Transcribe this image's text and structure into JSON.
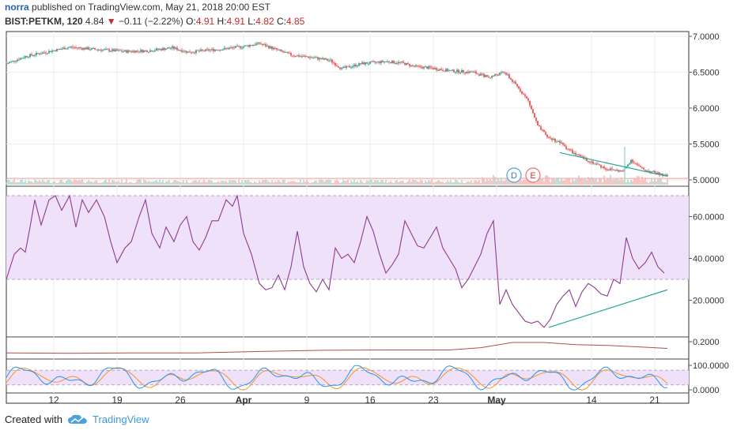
{
  "header": {
    "author": "norra",
    "published": "published on TradingView.com, May 21, 2018 20:00 EST",
    "symbol": "BIST:PETKM, 120",
    "last": "4.84",
    "change": "−0.11 (−2.22%)",
    "o_label": "O:",
    "o_val": "4.91",
    "h_label": "H:",
    "h_val": "4.91",
    "l_label": "L:",
    "l_val": "4.82",
    "c_label": "C:",
    "c_val": "4.85"
  },
  "footer": {
    "created_with": "Created with",
    "brand": "TradingView"
  },
  "markers": {
    "d": "D",
    "e": "E"
  },
  "colors": {
    "up": "#26a69a",
    "down": "#ef5350",
    "rsi": "#8e3b8e",
    "band": "#f0e1fb",
    "trend": "#26a69a",
    "k": "#2196f3",
    "d": "#f7931e",
    "adx": "#b24c4c"
  },
  "chart_data": [
    {
      "type": "candlestick",
      "panel": "price",
      "y_ticks": [
        "7.0000",
        "6.5000",
        "6.0000",
        "5.5000",
        "5.0000"
      ],
      "ylim": [
        4.95,
        7.05
      ],
      "x_ticks": [
        "12",
        "19",
        "26",
        "Apr",
        "9",
        "16",
        "23",
        "May",
        "14",
        "21"
      ],
      "close_path": [
        [
          0,
          6.62
        ],
        [
          12,
          6.72
        ],
        [
          25,
          6.78
        ],
        [
          40,
          6.85
        ],
        [
          55,
          6.82
        ],
        [
          75,
          6.79
        ],
        [
          90,
          6.8
        ],
        [
          105,
          6.84
        ],
        [
          115,
          6.78
        ],
        [
          125,
          6.8
        ],
        [
          140,
          6.83
        ],
        [
          150,
          6.86
        ],
        [
          160,
          6.9
        ],
        [
          170,
          6.82
        ],
        [
          180,
          6.74
        ],
        [
          195,
          6.7
        ],
        [
          205,
          6.66
        ],
        [
          212,
          6.55
        ],
        [
          225,
          6.62
        ],
        [
          240,
          6.65
        ],
        [
          250,
          6.63
        ],
        [
          258,
          6.58
        ],
        [
          268,
          6.56
        ],
        [
          280,
          6.52
        ],
        [
          295,
          6.5
        ],
        [
          305,
          6.43
        ],
        [
          315,
          6.5
        ],
        [
          325,
          6.25
        ],
        [
          330,
          6.1
        ],
        [
          336,
          5.75
        ],
        [
          342,
          5.6
        ],
        [
          350,
          5.52
        ],
        [
          360,
          5.35
        ],
        [
          370,
          5.25
        ],
        [
          380,
          5.15
        ],
        [
          390,
          5.12
        ],
        [
          395,
          5.28
        ],
        [
          402,
          5.15
        ],
        [
          410,
          5.1
        ],
        [
          418,
          5.05
        ]
      ],
      "trendline": [
        [
          350,
          5.38
        ],
        [
          418,
          5.05
        ]
      ],
      "volume_spike_x": 391,
      "markers_at": [
        321,
        333
      ]
    },
    {
      "type": "line",
      "panel": "rsi",
      "y_ticks": [
        "60.0000",
        "40.0000",
        "20.0000"
      ],
      "ylim": [
        5,
        72
      ],
      "band": [
        30,
        70
      ],
      "values": [
        [
          0,
          30
        ],
        [
          5,
          42
        ],
        [
          9,
          45
        ],
        [
          12,
          43
        ],
        [
          15,
          55
        ],
        [
          18,
          68
        ],
        [
          22,
          56
        ],
        [
          27,
          68
        ],
        [
          31,
          70
        ],
        [
          35,
          63
        ],
        [
          40,
          70
        ],
        [
          44,
          55
        ],
        [
          48,
          68
        ],
        [
          52,
          62
        ],
        [
          57,
          68
        ],
        [
          62,
          60
        ],
        [
          66,
          48
        ],
        [
          70,
          38
        ],
        [
          75,
          45
        ],
        [
          79,
          48
        ],
        [
          84,
          60
        ],
        [
          88,
          68
        ],
        [
          92,
          52
        ],
        [
          97,
          45
        ],
        [
          101,
          55
        ],
        [
          106,
          48
        ],
        [
          110,
          56
        ],
        [
          114,
          60
        ],
        [
          118,
          48
        ],
        [
          122,
          44
        ],
        [
          126,
          50
        ],
        [
          130,
          58
        ],
        [
          134,
          58
        ],
        [
          139,
          68
        ],
        [
          143,
          65
        ],
        [
          146,
          70
        ],
        [
          150,
          52
        ],
        [
          155,
          42
        ],
        [
          160,
          28
        ],
        [
          164,
          25
        ],
        [
          168,
          26
        ],
        [
          172,
          32
        ],
        [
          176,
          25
        ],
        [
          180,
          36
        ],
        [
          184,
          53
        ],
        [
          188,
          36
        ],
        [
          192,
          28
        ],
        [
          196,
          24
        ],
        [
          200,
          30
        ],
        [
          204,
          25
        ],
        [
          208,
          45
        ],
        [
          212,
          40
        ],
        [
          216,
          42
        ],
        [
          220,
          38
        ],
        [
          224,
          48
        ],
        [
          228,
          60
        ],
        [
          232,
          53
        ],
        [
          236,
          42
        ],
        [
          240,
          33
        ],
        [
          244,
          37
        ],
        [
          248,
          42
        ],
        [
          252,
          58
        ],
        [
          256,
          52
        ],
        [
          260,
          46
        ],
        [
          264,
          45
        ],
        [
          268,
          50
        ],
        [
          272,
          55
        ],
        [
          276,
          45
        ],
        [
          280,
          40
        ],
        [
          284,
          35
        ],
        [
          288,
          26
        ],
        [
          292,
          30
        ],
        [
          296,
          36
        ],
        [
          300,
          42
        ],
        [
          304,
          52
        ],
        [
          308,
          58
        ],
        [
          312,
          18
        ],
        [
          316,
          25
        ],
        [
          320,
          18
        ],
        [
          324,
          14
        ],
        [
          328,
          10
        ],
        [
          332,
          9
        ],
        [
          336,
          10
        ],
        [
          340,
          7
        ],
        [
          344,
          11
        ],
        [
          348,
          18
        ],
        [
          352,
          22
        ],
        [
          356,
          25
        ],
        [
          360,
          17
        ],
        [
          364,
          24
        ],
        [
          368,
          28
        ],
        [
          372,
          26
        ],
        [
          376,
          23
        ],
        [
          380,
          22
        ],
        [
          384,
          30
        ],
        [
          388,
          28
        ],
        [
          392,
          50
        ],
        [
          396,
          40
        ],
        [
          400,
          35
        ],
        [
          404,
          38
        ],
        [
          408,
          43
        ],
        [
          412,
          36
        ],
        [
          416,
          33
        ]
      ],
      "trendline": [
        [
          343,
          7
        ],
        [
          418,
          25
        ]
      ]
    },
    {
      "type": "line",
      "panel": "indicator",
      "y_ticks": [
        "0.2000"
      ],
      "ylim": [
        0.0,
        0.22
      ],
      "values": [
        [
          0,
          0.05
        ],
        [
          40,
          0.045
        ],
        [
          80,
          0.05
        ],
        [
          120,
          0.05
        ],
        [
          160,
          0.07
        ],
        [
          200,
          0.085
        ],
        [
          240,
          0.09
        ],
        [
          280,
          0.09
        ],
        [
          300,
          0.12
        ],
        [
          320,
          0.19
        ],
        [
          340,
          0.19
        ],
        [
          360,
          0.16
        ],
        [
          380,
          0.15
        ],
        [
          400,
          0.13
        ],
        [
          418,
          0.11
        ]
      ]
    },
    {
      "type": "line",
      "panel": "stochastic",
      "y_ticks": [
        "100.0000",
        "0.0000"
      ],
      "ylim": [
        -10,
        110
      ],
      "band": [
        20,
        80
      ]
    }
  ]
}
